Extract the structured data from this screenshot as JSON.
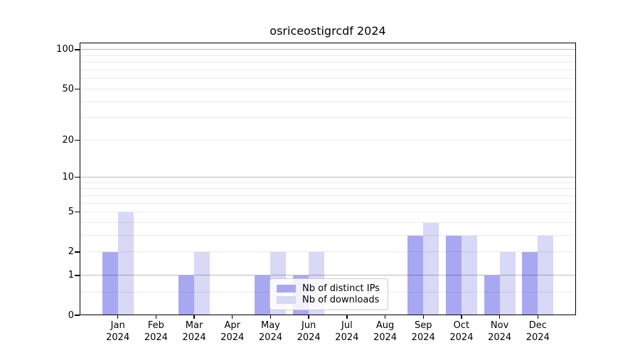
{
  "figure": {
    "background": "#ffffff"
  },
  "chart_data": {
    "type": "bar",
    "title": "osriceostigrcdf 2024",
    "categories": [
      {
        "month": "Jan",
        "year": "2024"
      },
      {
        "month": "Feb",
        "year": "2024"
      },
      {
        "month": "Mar",
        "year": "2024"
      },
      {
        "month": "Apr",
        "year": "2024"
      },
      {
        "month": "May",
        "year": "2024"
      },
      {
        "month": "Jun",
        "year": "2024"
      },
      {
        "month": "Jul",
        "year": "2024"
      },
      {
        "month": "Aug",
        "year": "2024"
      },
      {
        "month": "Sep",
        "year": "2024"
      },
      {
        "month": "Oct",
        "year": "2024"
      },
      {
        "month": "Nov",
        "year": "2024"
      },
      {
        "month": "Dec",
        "year": "2024"
      }
    ],
    "series": [
      {
        "name": "Nb of distinct IPs",
        "color": "#a8a8f2",
        "values": [
          2,
          0,
          1,
          0,
          1,
          1,
          0,
          0,
          3,
          3,
          1,
          2
        ]
      },
      {
        "name": "Nb of downloads",
        "color": "#d8d8f7",
        "values": [
          5,
          0,
          2,
          0,
          2,
          2,
          0,
          0,
          4,
          3,
          2,
          3
        ]
      }
    ],
    "y_axis": {
      "scale": "log10(1+v)",
      "top_value": 113.2,
      "labeled_ticks": [
        0,
        1,
        2,
        5,
        10,
        20,
        50,
        100
      ],
      "major_gridlines": [
        1,
        10,
        100
      ],
      "minor_gridlines": [
        0.5,
        2,
        3,
        4,
        5,
        6,
        7,
        8,
        9,
        20,
        30,
        40,
        50,
        60,
        70,
        80,
        90
      ]
    },
    "legend": {
      "position": "lower-center",
      "entries": [
        "Nb of distinct IPs",
        "Nb of downloads"
      ]
    },
    "grid": true
  }
}
